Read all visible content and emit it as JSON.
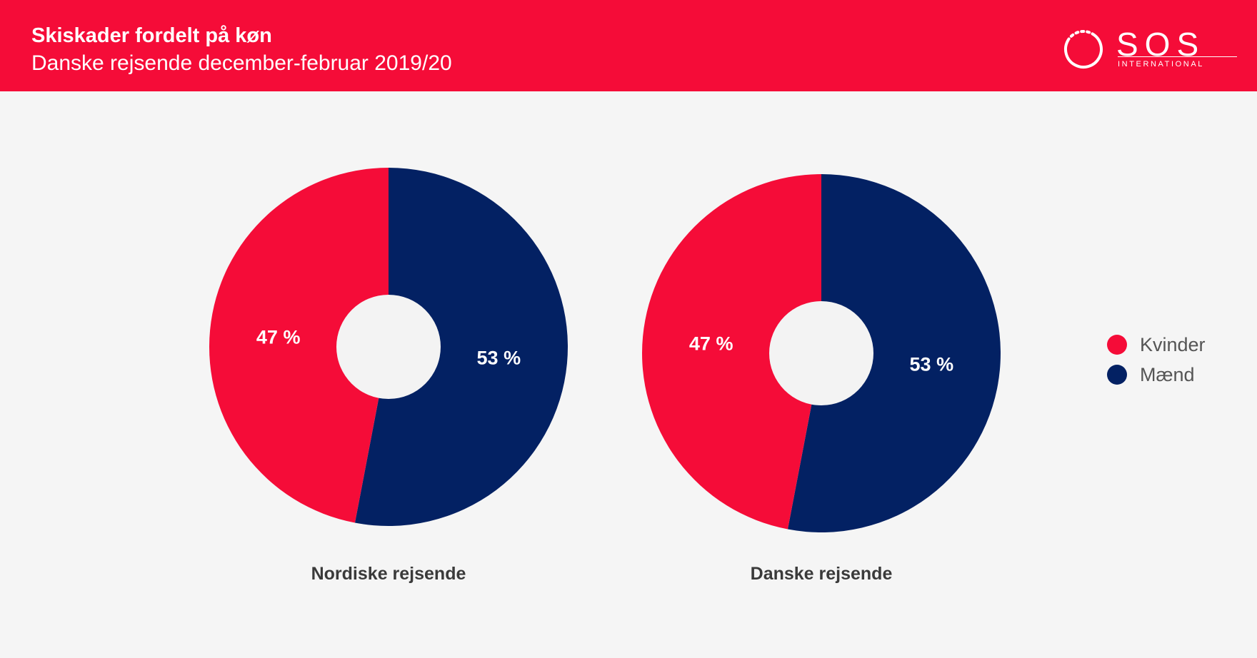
{
  "header": {
    "title": "Skiskader fordelt på køn",
    "subtitle": "Danske rejsende december-februar 2019/20"
  },
  "logo": {
    "word": "SOS",
    "sub": "INTERNATIONAL"
  },
  "colors": {
    "brand_red": "#f50c38",
    "navy": "#032163",
    "background": "#f5f5f5"
  },
  "chart_data": [
    {
      "type": "pie",
      "title": "Nordiske rejsende",
      "categories": [
        "Kvinder",
        "Mænd"
      ],
      "values": [
        47,
        53
      ],
      "value_labels": [
        "47 %",
        "53 %"
      ],
      "colors": [
        "#f50c38",
        "#032163"
      ],
      "legend": "right"
    },
    {
      "type": "pie",
      "title": "Danske rejsende",
      "categories": [
        "Kvinder",
        "Mænd"
      ],
      "values": [
        47,
        53
      ],
      "value_labels": [
        "47 %",
        "53 %"
      ],
      "colors": [
        "#f50c38",
        "#032163"
      ],
      "legend": "right"
    }
  ],
  "legend": {
    "items": [
      {
        "label": "Kvinder",
        "color": "#f50c38"
      },
      {
        "label": "Mænd",
        "color": "#032163"
      }
    ]
  }
}
